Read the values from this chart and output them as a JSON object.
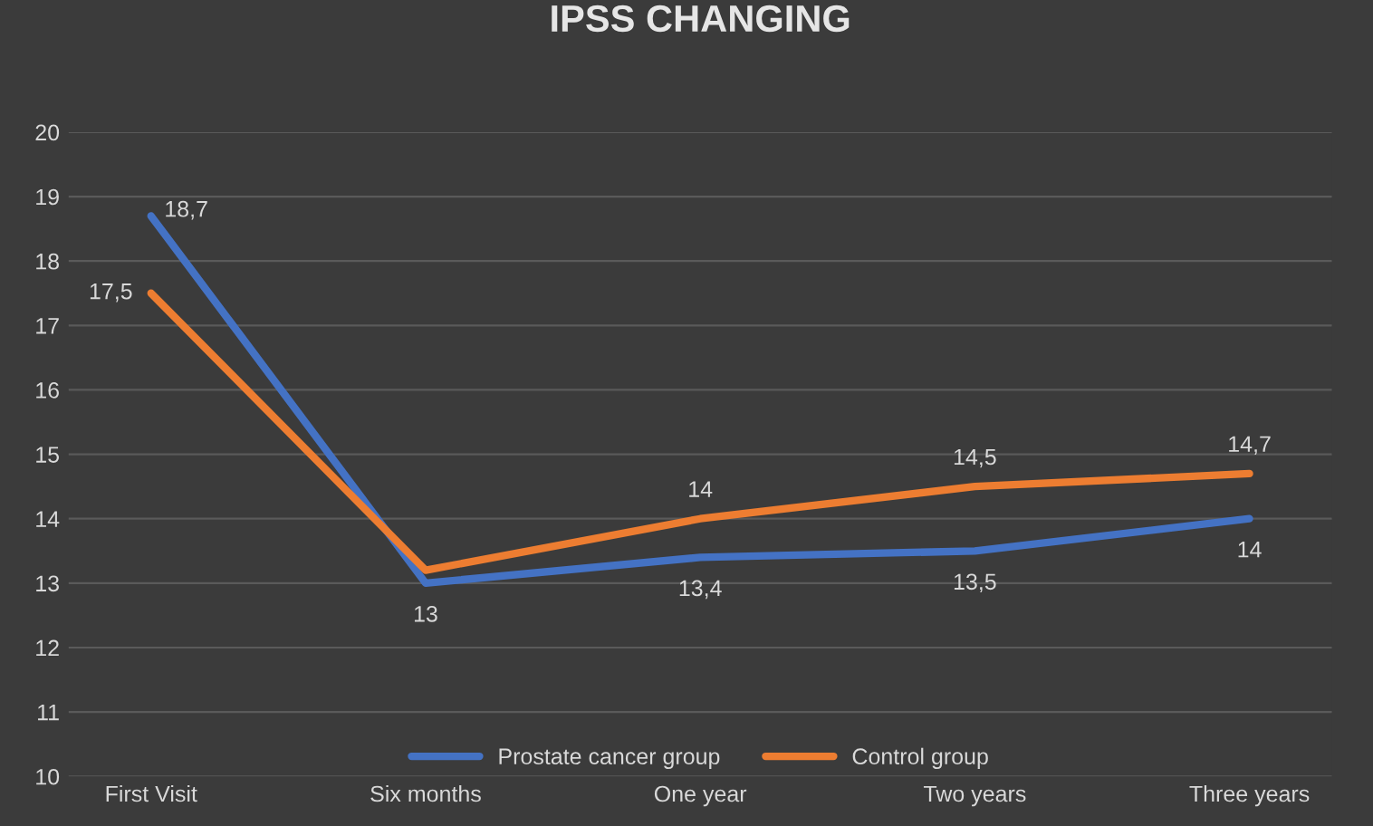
{
  "chart_data": {
    "type": "line",
    "title": "IPSS CHANGING",
    "categories": [
      "First Visit",
      "Six months",
      "One year",
      "Two years",
      "Three years"
    ],
    "series": [
      {
        "name": "Prostate cancer group",
        "color": "#4472c4",
        "values": [
          18.7,
          13,
          13.4,
          13.5,
          14
        ],
        "value_labels": [
          "18,7",
          "13",
          "13,4",
          "13,5",
          "14"
        ]
      },
      {
        "name": "Control group",
        "color": "#ed7d31",
        "values": [
          17.5,
          13.2,
          14,
          14.5,
          14.7
        ],
        "value_labels": [
          "17,5",
          null,
          "14",
          "14,5",
          "14,7"
        ]
      }
    ],
    "ylim": [
      10,
      20
    ],
    "yticks": [
      10,
      11,
      12,
      13,
      14,
      15,
      16,
      17,
      18,
      19,
      20
    ],
    "grid": "y",
    "legend": "bottom",
    "marker": "none",
    "line_style": "solid"
  }
}
